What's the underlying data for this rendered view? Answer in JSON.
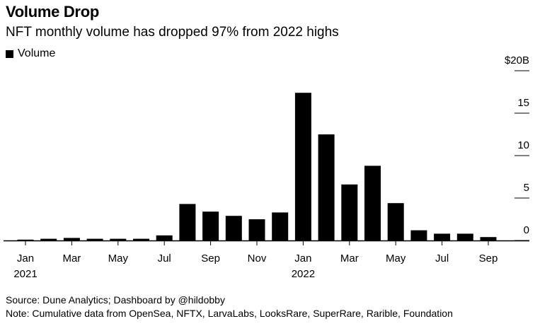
{
  "header": {
    "title": "Volume Drop",
    "subtitle": "NFT monthly volume has dropped 97% from 2022 highs"
  },
  "legend": {
    "label": "Volume"
  },
  "footer": {
    "source": "Source: Dune Analytics; Dashboard by @hildobby",
    "note": "Note: Cumulative data from OpenSea, NFTX, LarvaLabs, LooksRare, SuperRare, Rarible, Foundation"
  },
  "chart_data": {
    "type": "bar",
    "title": "Volume Drop",
    "subtitle": "NFT monthly volume has dropped 97% from 2022 highs",
    "categories": [
      "Jan 2021",
      "Feb 2021",
      "Mar 2021",
      "Apr 2021",
      "May 2021",
      "Jun 2021",
      "Jul 2021",
      "Aug 2021",
      "Sep 2021",
      "Oct 2021",
      "Nov 2021",
      "Dec 2021",
      "Jan 2022",
      "Feb 2022",
      "Mar 2022",
      "Apr 2022",
      "May 2022",
      "Jun 2022",
      "Jul 2022",
      "Aug 2022",
      "Sep 2022"
    ],
    "series": [
      {
        "name": "Volume",
        "values": [
          0.1,
          0.2,
          0.3,
          0.2,
          0.2,
          0.2,
          0.6,
          4.3,
          3.4,
          2.9,
          2.5,
          3.3,
          17.4,
          12.5,
          6.6,
          8.8,
          4.4,
          1.2,
          0.8,
          0.8,
          0.4
        ]
      }
    ],
    "x_tick_labels": [
      "Jan",
      "Mar",
      "May",
      "Jul",
      "Sep",
      "Nov",
      "Jan",
      "Mar",
      "May",
      "Jul",
      "Sep"
    ],
    "x_tick_label_indices": [
      0,
      2,
      4,
      6,
      8,
      10,
      12,
      14,
      16,
      18,
      20
    ],
    "year_labels": [
      "2021",
      "2022"
    ],
    "year_label_indices": [
      0,
      12
    ],
    "y_ticks": [
      0,
      5,
      10,
      15,
      20
    ],
    "y_tick_labels": [
      "0",
      "5",
      "10",
      "15",
      "$20B"
    ],
    "ylim": [
      0,
      20
    ],
    "y_axis_side": "right",
    "grid": false,
    "legend_position": "top-left",
    "colors": {
      "bar": "#000000",
      "axis": "#000000"
    }
  }
}
